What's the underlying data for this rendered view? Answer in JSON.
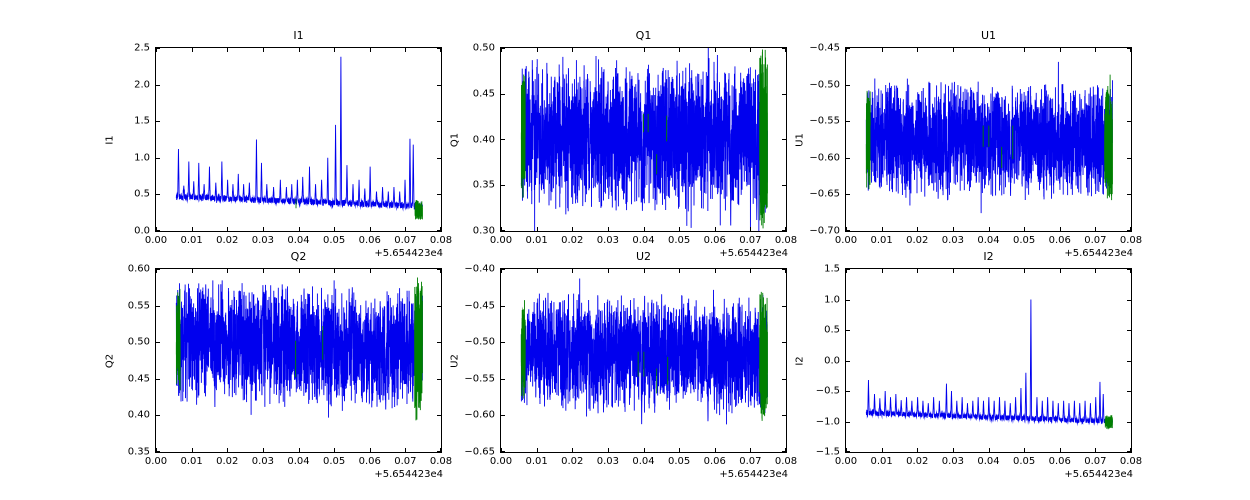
{
  "figure": {
    "background": "#ffffff",
    "line_color": "#0000ee",
    "green_color": "#007f00",
    "axis_color": "#000000"
  },
  "chart_data": [
    {
      "type": "line",
      "title": "I1",
      "ylabel": "I1",
      "x_offset": "+5.654423e4",
      "xlim": [
        0.0,
        0.08
      ],
      "ylim": [
        0.0,
        2.5
      ],
      "xtick_values": [
        0.0,
        0.01,
        0.02,
        0.03,
        0.04,
        0.05,
        0.06,
        0.07,
        0.08
      ],
      "xtick_labels": [
        "0.00",
        "0.01",
        "0.02",
        "0.03",
        "0.04",
        "0.05",
        "0.06",
        "0.07",
        "0.08"
      ],
      "ytick_values": [
        0.0,
        0.5,
        1.0,
        1.5,
        2.0,
        2.5
      ],
      "ytick_labels": [
        "0.0",
        "0.5",
        "1.0",
        "1.5",
        "2.0",
        "2.5"
      ],
      "x_range": [
        0.0057,
        0.0748
      ],
      "seed": 1,
      "signal": {
        "kind": "spiky",
        "base_start": 0.47,
        "base_end": 0.34,
        "noise": 0.05,
        "spikes": [
          [
            0.0063,
            1.12
          ],
          [
            0.0078,
            0.62
          ],
          [
            0.0092,
            0.95
          ],
          [
            0.0106,
            0.68
          ],
          [
            0.012,
            0.93
          ],
          [
            0.0135,
            0.64
          ],
          [
            0.015,
            0.88
          ],
          [
            0.0168,
            0.66
          ],
          [
            0.0185,
            0.95
          ],
          [
            0.0201,
            0.7
          ],
          [
            0.0216,
            0.64
          ],
          [
            0.0231,
            0.78
          ],
          [
            0.0246,
            0.64
          ],
          [
            0.0262,
            0.66
          ],
          [
            0.0282,
            1.25
          ],
          [
            0.0296,
            0.93
          ],
          [
            0.0311,
            0.64
          ],
          [
            0.033,
            0.6
          ],
          [
            0.0349,
            0.7
          ],
          [
            0.0366,
            0.6
          ],
          [
            0.0381,
            0.64
          ],
          [
            0.0397,
            0.7
          ],
          [
            0.0412,
            0.74
          ],
          [
            0.0431,
            0.88
          ],
          [
            0.0448,
            0.64
          ],
          [
            0.0465,
            0.7
          ],
          [
            0.0482,
            1.0
          ],
          [
            0.0504,
            1.45
          ],
          [
            0.0519,
            2.38
          ],
          [
            0.0536,
            0.9
          ],
          [
            0.0553,
            0.64
          ],
          [
            0.057,
            0.7
          ],
          [
            0.0586,
            0.58
          ],
          [
            0.0601,
            0.88
          ],
          [
            0.0619,
            0.54
          ],
          [
            0.0636,
            0.6
          ],
          [
            0.0652,
            0.54
          ],
          [
            0.0668,
            0.6
          ],
          [
            0.0684,
            0.54
          ],
          [
            0.0699,
            0.7
          ],
          [
            0.0713,
            1.26
          ],
          [
            0.0722,
            1.18
          ]
        ]
      },
      "green": {
        "segments": [
          {
            "x": [
              0.0727,
              0.0748
            ],
            "center": 0.29,
            "half": 0.12
          }
        ],
        "marks": [
          [
            0.0393,
            0.31,
            0.44
          ]
        ]
      }
    },
    {
      "type": "line",
      "title": "Q1",
      "ylabel": "Q1",
      "x_offset": "+5.654423e4",
      "xlim": [
        0.0,
        0.08
      ],
      "ylim": [
        0.3,
        0.5
      ],
      "xtick_values": [
        0.0,
        0.01,
        0.02,
        0.03,
        0.04,
        0.05,
        0.06,
        0.07,
        0.08
      ],
      "xtick_labels": [
        "0.00",
        "0.01",
        "0.02",
        "0.03",
        "0.04",
        "0.05",
        "0.06",
        "0.07",
        "0.08"
      ],
      "ytick_values": [
        0.3,
        0.35,
        0.4,
        0.45,
        0.5
      ],
      "ytick_labels": [
        "0.30",
        "0.35",
        "0.40",
        "0.45",
        "0.50"
      ],
      "x_range": [
        0.0057,
        0.0748
      ],
      "seed": 2,
      "signal": {
        "kind": "band",
        "center_start": 0.406,
        "center_end": 0.404,
        "half": 0.068,
        "spikes": [
          [
            0.0397,
            0.322
          ],
          [
            0.0645,
            0.306
          ],
          [
            0.0718,
            0.312
          ]
        ]
      },
      "green": {
        "segments": [
          {
            "x": [
              0.0057,
              0.0068
            ],
            "center": 0.41,
            "half": 0.062
          },
          {
            "x": [
              0.0726,
              0.0748
            ],
            "center": 0.4,
            "half": 0.083
          }
        ],
        "marks": [
          [
            0.04,
            0.408,
            0.428
          ],
          [
            0.0413,
            0.408,
            0.428
          ],
          [
            0.0437,
            0.362,
            0.384
          ],
          [
            0.0465,
            0.398,
            0.426
          ]
        ]
      }
    },
    {
      "type": "line",
      "title": "U1",
      "ylabel": "U1",
      "x_offset": "+5.654423e4",
      "xlim": [
        0.0,
        0.08
      ],
      "ylim": [
        -0.7,
        -0.45
      ],
      "xtick_values": [
        0.0,
        0.01,
        0.02,
        0.03,
        0.04,
        0.05,
        0.06,
        0.07,
        0.08
      ],
      "xtick_labels": [
        "0.00",
        "0.01",
        "0.02",
        "0.03",
        "0.04",
        "0.05",
        "0.06",
        "0.07",
        "0.08"
      ],
      "ytick_values": [
        -0.7,
        -0.65,
        -0.6,
        -0.55,
        -0.5,
        -0.45
      ],
      "ytick_labels": [
        "−0.70",
        "−0.65",
        "−0.60",
        "−0.55",
        "−0.50",
        "−0.45"
      ],
      "x_range": [
        0.0057,
        0.0748
      ],
      "seed": 3,
      "signal": {
        "kind": "band",
        "center_start": -0.573,
        "center_end": -0.577,
        "half": 0.065,
        "spikes": [
          [
            0.0285,
            -0.658
          ],
          [
            0.0462,
            -0.652
          ]
        ]
      },
      "green": {
        "segments": [
          {
            "x": [
              0.0057,
              0.0068
            ],
            "center": -0.575,
            "half": 0.06
          },
          {
            "x": [
              0.0726,
              0.0748
            ],
            "center": -0.578,
            "half": 0.075
          }
        ],
        "marks": [
          [
            0.0385,
            -0.585,
            -0.556
          ],
          [
            0.0401,
            -0.585,
            -0.556
          ],
          [
            0.0437,
            -0.614,
            -0.585
          ],
          [
            0.0468,
            -0.602,
            -0.556
          ]
        ]
      }
    },
    {
      "type": "line",
      "title": "Q2",
      "ylabel": "Q2",
      "x_offset": "+5.654423e4",
      "xlim": [
        0.0,
        0.08
      ],
      "ylim": [
        0.35,
        0.6
      ],
      "xtick_values": [
        0.0,
        0.01,
        0.02,
        0.03,
        0.04,
        0.05,
        0.06,
        0.07,
        0.08
      ],
      "xtick_labels": [
        "0.00",
        "0.01",
        "0.02",
        "0.03",
        "0.04",
        "0.05",
        "0.06",
        "0.07",
        "0.08"
      ],
      "ytick_values": [
        0.35,
        0.4,
        0.45,
        0.5,
        0.55,
        0.6
      ],
      "ytick_labels": [
        "0.35",
        "0.40",
        "0.45",
        "0.50",
        "0.55",
        "0.60"
      ],
      "x_range": [
        0.0057,
        0.0748
      ],
      "seed": 4,
      "signal": {
        "kind": "band",
        "center_start": 0.503,
        "center_end": 0.487,
        "half": 0.068,
        "spikes": [
          [
            0.03,
            0.578
          ],
          [
            0.0551,
            0.575
          ],
          [
            0.0645,
            0.408
          ]
        ]
      },
      "green": {
        "segments": [
          {
            "x": [
              0.0057,
              0.0068
            ],
            "center": 0.501,
            "half": 0.06
          },
          {
            "x": [
              0.0726,
              0.0748
            ],
            "center": 0.49,
            "half": 0.082
          }
        ],
        "marks": [
          [
            0.0392,
            0.452,
            0.502
          ],
          [
            0.0468,
            0.476,
            0.522
          ]
        ]
      }
    },
    {
      "type": "line",
      "title": "U2",
      "ylabel": "U2",
      "x_offset": "+5.654423e4",
      "xlim": [
        0.0,
        0.08
      ],
      "ylim": [
        -0.65,
        -0.4
      ],
      "xtick_values": [
        0.0,
        0.01,
        0.02,
        0.03,
        0.04,
        0.05,
        0.06,
        0.07,
        0.08
      ],
      "xtick_labels": [
        "0.00",
        "0.01",
        "0.02",
        "0.03",
        "0.04",
        "0.05",
        "0.06",
        "0.07",
        "0.08"
      ],
      "ytick_values": [
        -0.65,
        -0.6,
        -0.55,
        -0.5,
        -0.45,
        -0.4
      ],
      "ytick_labels": [
        "−0.65",
        "−0.60",
        "−0.55",
        "−0.50",
        "−0.45",
        "−0.40"
      ],
      "x_range": [
        0.0057,
        0.0748
      ],
      "seed": 5,
      "signal": {
        "kind": "band",
        "center_start": -0.512,
        "center_end": -0.518,
        "half": 0.066,
        "spikes": [
          [
            0.0395,
            -0.612
          ],
          [
            0.0581,
            -0.608
          ]
        ]
      },
      "green": {
        "segments": [
          {
            "x": [
              0.0057,
              0.0068
            ],
            "center": -0.513,
            "half": 0.06
          },
          {
            "x": [
              0.0726,
              0.0748
            ],
            "center": -0.52,
            "half": 0.078
          }
        ],
        "marks": [
          [
            0.0385,
            -0.547,
            -0.513
          ],
          [
            0.0401,
            -0.547,
            -0.513
          ],
          [
            0.0437,
            -0.57,
            -0.536
          ],
          [
            0.0468,
            -0.558,
            -0.52
          ]
        ]
      }
    },
    {
      "type": "line",
      "title": "I2",
      "ylabel": "I2",
      "x_offset": "+5.654423e4",
      "xlim": [
        0.0,
        0.08
      ],
      "ylim": [
        -1.5,
        1.5
      ],
      "xtick_values": [
        0.0,
        0.01,
        0.02,
        0.03,
        0.04,
        0.05,
        0.06,
        0.07,
        0.08
      ],
      "xtick_labels": [
        "0.00",
        "0.01",
        "0.02",
        "0.03",
        "0.04",
        "0.05",
        "0.06",
        "0.07",
        "0.08"
      ],
      "ytick_values": [
        -1.5,
        -1.0,
        -0.5,
        0.0,
        0.5,
        1.0,
        1.5
      ],
      "ytick_labels": [
        "−1.5",
        "−1.0",
        "−0.5",
        "0.0",
        "0.5",
        "1.0",
        "1.5"
      ],
      "x_range": [
        0.0057,
        0.0748
      ],
      "seed": 6,
      "signal": {
        "kind": "spiky",
        "base_start": -0.86,
        "base_end": -1.0,
        "noise": 0.05,
        "spikes": [
          [
            0.0063,
            -0.32
          ],
          [
            0.008,
            -0.55
          ],
          [
            0.0095,
            -0.62
          ],
          [
            0.011,
            -0.5
          ],
          [
            0.0125,
            -0.6
          ],
          [
            0.014,
            -0.55
          ],
          [
            0.0155,
            -0.65
          ],
          [
            0.017,
            -0.6
          ],
          [
            0.0185,
            -0.66
          ],
          [
            0.0201,
            -0.6
          ],
          [
            0.0216,
            -0.66
          ],
          [
            0.0231,
            -0.7
          ],
          [
            0.0246,
            -0.6
          ],
          [
            0.0262,
            -0.66
          ],
          [
            0.0282,
            -0.38
          ],
          [
            0.0296,
            -0.5
          ],
          [
            0.0311,
            -0.66
          ],
          [
            0.0326,
            -0.6
          ],
          [
            0.0341,
            -0.7
          ],
          [
            0.0356,
            -0.66
          ],
          [
            0.0371,
            -0.6
          ],
          [
            0.0386,
            -0.66
          ],
          [
            0.0401,
            -0.6
          ],
          [
            0.0416,
            -0.66
          ],
          [
            0.0431,
            -0.6
          ],
          [
            0.0446,
            -0.66
          ],
          [
            0.0461,
            -0.7
          ],
          [
            0.0476,
            -0.6
          ],
          [
            0.0491,
            -0.45
          ],
          [
            0.0505,
            -0.2
          ],
          [
            0.0519,
            1.0
          ],
          [
            0.0536,
            -0.6
          ],
          [
            0.0551,
            -0.66
          ],
          [
            0.0566,
            -0.6
          ],
          [
            0.0581,
            -0.66
          ],
          [
            0.0596,
            -0.7
          ],
          [
            0.0611,
            -0.66
          ],
          [
            0.0626,
            -0.7
          ],
          [
            0.0641,
            -0.66
          ],
          [
            0.0656,
            -0.7
          ],
          [
            0.0671,
            -0.66
          ],
          [
            0.0686,
            -0.7
          ],
          [
            0.0701,
            -0.6
          ],
          [
            0.0713,
            -0.35
          ],
          [
            0.0722,
            -0.55
          ]
        ]
      },
      "green": {
        "segments": [
          {
            "x": [
              0.0727,
              0.0748
            ],
            "center": -1.01,
            "half": 0.1
          }
        ],
        "marks": []
      }
    }
  ]
}
